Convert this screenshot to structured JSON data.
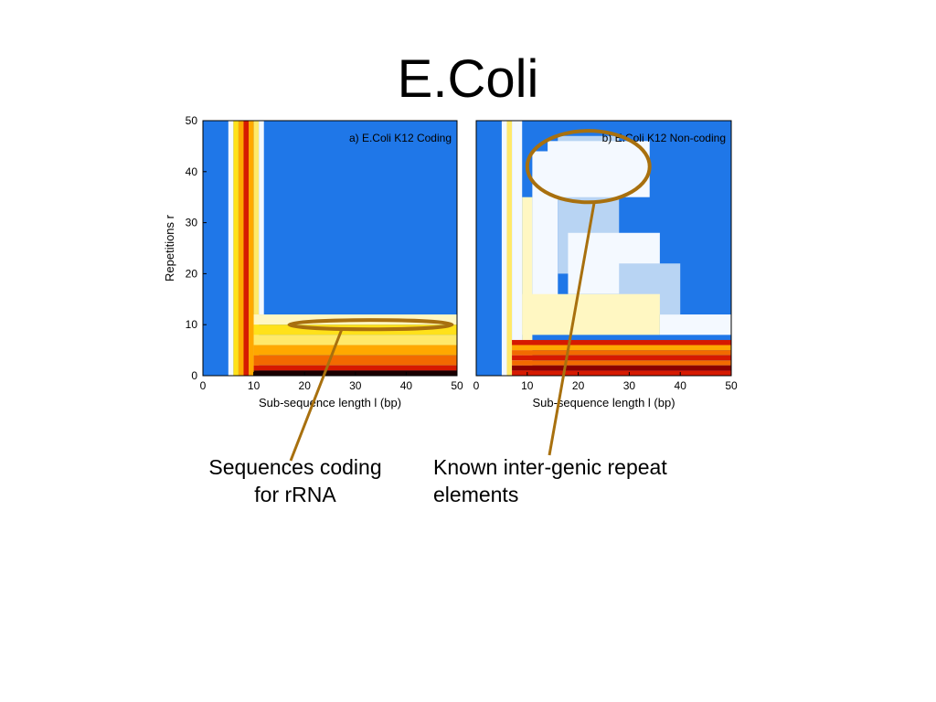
{
  "slide": {
    "title": "E.Coli",
    "caption_left": "Sequences coding\nfor rRNA",
    "caption_right": "Known inter-genic repeat\nelements"
  },
  "colors": {
    "background": "#1f77e8",
    "very_light_blue": "#b8d4f3",
    "near_white": "#f4f9ff",
    "cream": "#fff7c2",
    "light_yellow": "#ffe96a",
    "yellow": "#ffe11a",
    "orange": "#ffa800",
    "dark_orange": "#f26a00",
    "red": "#d61a00",
    "dark_red": "#8a0000",
    "black": "#1a0000",
    "annotation": "#a8700e"
  },
  "chart_data": [
    {
      "type": "heatmap",
      "panel_label": "a) E.Coli K12 Coding",
      "xlabel": "Sub-sequence length l (bp)",
      "ylabel": "Repetitions r",
      "xlim": [
        0,
        50
      ],
      "ylim": [
        0,
        50
      ],
      "xticks": [
        "0",
        "10",
        "20",
        "30",
        "40",
        "50"
      ],
      "yticks": [
        "0",
        "10",
        "20",
        "30",
        "40",
        "50"
      ],
      "regions": [
        {
          "x": [
            5,
            6
          ],
          "y": [
            0,
            50
          ],
          "level": "near_white"
        },
        {
          "x": [
            6,
            7
          ],
          "y": [
            0,
            50
          ],
          "level": "yellow"
        },
        {
          "x": [
            7,
            8
          ],
          "y": [
            0,
            50
          ],
          "level": "orange"
        },
        {
          "x": [
            8,
            9
          ],
          "y": [
            0,
            50
          ],
          "level": "red"
        },
        {
          "x": [
            9,
            10
          ],
          "y": [
            0,
            50
          ],
          "level": "orange"
        },
        {
          "x": [
            10,
            11
          ],
          "y": [
            0,
            50
          ],
          "level": "light_yellow"
        },
        {
          "x": [
            11,
            12
          ],
          "y": [
            12,
            50
          ],
          "level": "near_white"
        },
        {
          "x": [
            10,
            50
          ],
          "y": [
            10,
            12
          ],
          "level": "cream"
        },
        {
          "x": [
            10,
            50
          ],
          "y": [
            8,
            10
          ],
          "level": "yellow"
        },
        {
          "x": [
            10,
            50
          ],
          "y": [
            6,
            8
          ],
          "level": "light_yellow"
        },
        {
          "x": [
            10,
            50
          ],
          "y": [
            4,
            6
          ],
          "level": "orange"
        },
        {
          "x": [
            10,
            50
          ],
          "y": [
            2,
            4
          ],
          "level": "dark_orange"
        },
        {
          "x": [
            10,
            50
          ],
          "y": [
            1,
            2
          ],
          "level": "red"
        },
        {
          "x": [
            10,
            50
          ],
          "y": [
            0,
            1
          ],
          "level": "black"
        }
      ],
      "annotation": {
        "shape": "ellipse",
        "cx": 33,
        "cy": 10,
        "rx": 16,
        "ry": 0.9,
        "caption_ref": "caption_left"
      }
    },
    {
      "type": "heatmap",
      "panel_label": "b) E.Coli K12 Non-coding",
      "xlabel": "Sub-sequence length l (bp)",
      "ylabel": "",
      "xlim": [
        0,
        50
      ],
      "ylim": [
        0,
        50
      ],
      "xticks": [
        "0",
        "10",
        "20",
        "30",
        "40",
        "50"
      ],
      "yticks": [],
      "regions": [
        {
          "x": [
            5,
            6
          ],
          "y": [
            0,
            50
          ],
          "level": "near_white"
        },
        {
          "x": [
            6,
            7
          ],
          "y": [
            0,
            50
          ],
          "level": "light_yellow"
        },
        {
          "x": [
            7,
            9
          ],
          "y": [
            0,
            50
          ],
          "level": "near_white"
        },
        {
          "x": [
            9,
            11
          ],
          "y": [
            0,
            35
          ],
          "level": "cream"
        },
        {
          "x": [
            11,
            16
          ],
          "y": [
            15,
            44
          ],
          "level": "near_white"
        },
        {
          "x": [
            16,
            28
          ],
          "y": [
            20,
            47
          ],
          "level": "very_light_blue"
        },
        {
          "x": [
            14,
            34
          ],
          "y": [
            35,
            46
          ],
          "level": "near_white"
        },
        {
          "x": [
            18,
            36
          ],
          "y": [
            16,
            28
          ],
          "level": "near_white"
        },
        {
          "x": [
            28,
            40
          ],
          "y": [
            12,
            22
          ],
          "level": "very_light_blue"
        },
        {
          "x": [
            36,
            50
          ],
          "y": [
            8,
            12
          ],
          "level": "near_white"
        },
        {
          "x": [
            9,
            36
          ],
          "y": [
            8,
            16
          ],
          "level": "cream"
        },
        {
          "x": [
            7,
            50
          ],
          "y": [
            6,
            7
          ],
          "level": "red"
        },
        {
          "x": [
            7,
            50
          ],
          "y": [
            5,
            6
          ],
          "level": "orange"
        },
        {
          "x": [
            7,
            50
          ],
          "y": [
            4,
            5
          ],
          "level": "dark_orange"
        },
        {
          "x": [
            7,
            50
          ],
          "y": [
            3,
            4
          ],
          "level": "red"
        },
        {
          "x": [
            7,
            50
          ],
          "y": [
            2,
            3
          ],
          "level": "dark_orange"
        },
        {
          "x": [
            7,
            50
          ],
          "y": [
            1,
            2
          ],
          "level": "dark_red"
        },
        {
          "x": [
            7,
            50
          ],
          "y": [
            0,
            1
          ],
          "level": "red"
        }
      ],
      "annotation": {
        "shape": "ellipse",
        "cx": 22,
        "cy": 41,
        "rx": 12,
        "ry": 7,
        "caption_ref": "caption_right"
      }
    }
  ]
}
